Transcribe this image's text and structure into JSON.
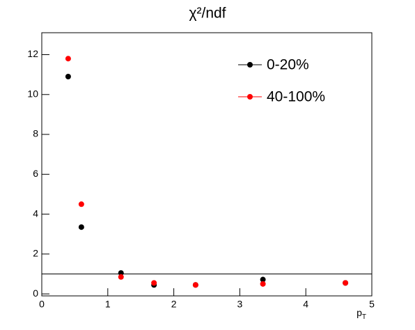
{
  "chart_data": {
    "type": "scatter",
    "title": "χ²/ndf",
    "x_label": "p",
    "x_label_sub": "T",
    "x": [
      0.4,
      0.6,
      1.2,
      1.7,
      2.33,
      3.35,
      4.6
    ],
    "series": [
      {
        "name": "0-20%",
        "color": "#000000",
        "values": [
          10.9,
          3.35,
          1.05,
          0.45,
          0.45,
          0.72,
          0.55
        ]
      },
      {
        "name": "40-100%",
        "color": "#ff0000",
        "values": [
          11.8,
          4.5,
          0.85,
          0.55,
          0.45,
          0.5,
          0.55
        ]
      }
    ],
    "reference_line": 1,
    "xlim": [
      0,
      5
    ],
    "xticks": [
      0,
      1,
      2,
      3,
      4,
      5
    ],
    "ylim": [
      -0.1,
      13.1
    ],
    "yticks": [
      0,
      2,
      4,
      6,
      8,
      10,
      12
    ],
    "legend": "upper-right"
  }
}
